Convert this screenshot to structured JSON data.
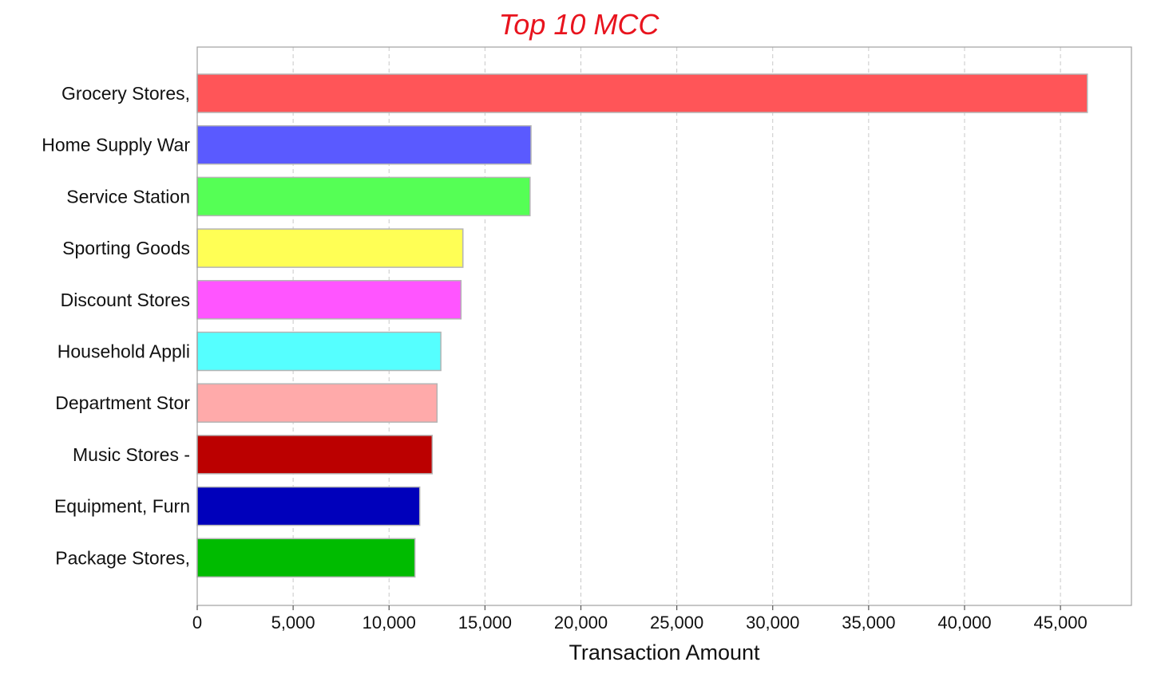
{
  "chart_data": {
    "type": "bar",
    "orientation": "horizontal",
    "title": "Top 10 MCC",
    "xlabel": "Transaction Amount",
    "ylabel": "",
    "xlim": [
      0,
      48700
    ],
    "xticks": [
      0,
      5000,
      10000,
      15000,
      20000,
      25000,
      30000,
      35000,
      40000,
      45000
    ],
    "xtick_labels": [
      "0",
      "5,000",
      "10,000",
      "15,000",
      "20,000",
      "25,000",
      "30,000",
      "35,000",
      "40,000",
      "45,000"
    ],
    "grid": "vertical dashed",
    "categories": [
      "Grocery Stores,",
      "Home Supply War",
      "Service Station",
      "Sporting Goods",
      "Discount Stores",
      "Household Appli",
      "Department Stor",
      "Music Stores -",
      "Equipment, Furn",
      "Package Stores,"
    ],
    "values": [
      46400,
      17400,
      17350,
      13850,
      13750,
      12700,
      12500,
      12250,
      11600,
      11350
    ],
    "colors": [
      "#ff5558",
      "#5a5aff",
      "#55ff55",
      "#ffff55",
      "#ff55ff",
      "#55ffff",
      "#ffaaaa",
      "#bb0000",
      "#0000bb",
      "#00bb00"
    ],
    "title_color": "#e8141e"
  }
}
